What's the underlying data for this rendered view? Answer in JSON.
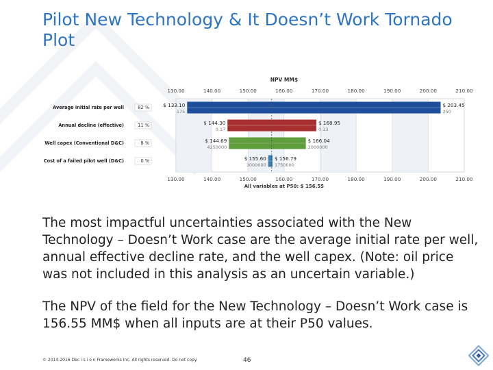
{
  "slide": {
    "title": "Pilot New Technology & It Doesn’t Work Tornado Plot",
    "paragraph1": "The most impactful uncertainties associated with the New Technology – Doesn’t Work case are the average initial rate per well, annual effective decline rate, and the well capex. (Note: oil price was not included in this analysis as an uncertain variable.)",
    "paragraph2": "The NPV of the field for the New Technology – Doesn’t Work case is 156.55 MM$ when all inputs are at their P50 values.",
    "footer": "© 2014-2016 Dec i s i o n Frameworks Inc. All rights reserved. Do not copy.",
    "page_number": "46"
  },
  "chart_data": {
    "type": "tornado",
    "title": "NPV MM$",
    "xlabel": "All variables at P50: $ 156.55",
    "base": 156.55,
    "xlim": [
      130,
      210
    ],
    "xticks": [
      "130.00",
      "140.00",
      "150.00",
      "160.00",
      "170.00",
      "180.00",
      "190.00",
      "200.00",
      "210.00"
    ],
    "grid": true,
    "variables": [
      {
        "label": "Average initial rate per well",
        "pct": "82 %",
        "low": 133.1,
        "high": 203.45,
        "low_label": "$ 133.10",
        "high_label": "$ 203.45",
        "low_input": "175",
        "high_input": "250",
        "color": "#1f4e9c"
      },
      {
        "label": "Annual decline (effective)",
        "pct": "11 %",
        "low": 144.3,
        "high": 168.95,
        "low_label": "$ 144.30",
        "high_label": "$ 168.95",
        "low_input": "0.17",
        "high_input": "0.13",
        "color": "#a83030"
      },
      {
        "label": "Well capex (Conventional D&C)",
        "pct": "8 %",
        "low": 144.69,
        "high": 166.04,
        "low_label": "$ 144.69",
        "high_label": "$ 166.04",
        "low_input": "4250000",
        "high_input": "2000000",
        "color": "#5e9c3c"
      },
      {
        "label": "Cost of a failed pilot well (D&C)",
        "pct": "0 %",
        "low": 155.6,
        "high": 156.79,
        "low_label": "$ 155.60",
        "high_label": "$ 156.79",
        "low_input": "3000000",
        "high_input": "1750000",
        "color": "#3c7cb4"
      }
    ]
  }
}
